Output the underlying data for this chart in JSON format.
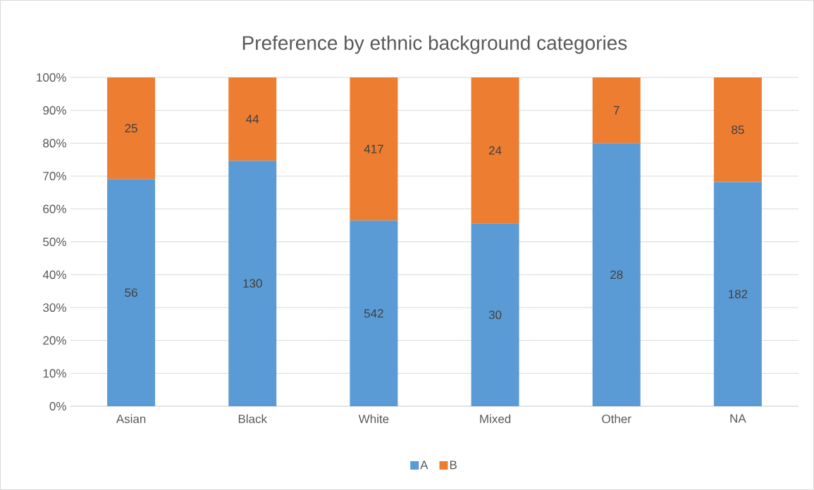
{
  "chart_data": {
    "type": "bar",
    "stacked": true,
    "title": "Preference by ethnic background categories",
    "categories": [
      "Asian",
      "Black",
      "White",
      "Mixed",
      "Other",
      "NA"
    ],
    "series": [
      {
        "name": "A",
        "color": "#5b9bd5",
        "values": [
          69.1,
          74.7,
          56.5,
          55.6,
          80.0,
          68.2
        ]
      },
      {
        "name": "B",
        "color": "#ed7d31",
        "values": [
          30.9,
          25.3,
          43.5,
          44.4,
          20.0,
          31.8
        ]
      }
    ],
    "annotations": [
      "56",
      "130",
      "542",
      "30",
      "28",
      "182",
      "25",
      "44",
      "417",
      "24",
      "7",
      "85"
    ],
    "ylim": [
      0,
      100
    ],
    "yticks": [
      {
        "value": 0,
        "label": "0%"
      },
      {
        "value": 10,
        "label": "10%"
      },
      {
        "value": 20,
        "label": "20%"
      },
      {
        "value": 30,
        "label": "30%"
      },
      {
        "value": 40,
        "label": "40%"
      },
      {
        "value": 50,
        "label": "50%"
      },
      {
        "value": 60,
        "label": "60%"
      },
      {
        "value": 70,
        "label": "70%"
      },
      {
        "value": 80,
        "label": "80%"
      },
      {
        "value": 90,
        "label": "90%"
      },
      {
        "value": 100,
        "label": "100%"
      }
    ],
    "grid": "y",
    "legend": "bottom"
  }
}
